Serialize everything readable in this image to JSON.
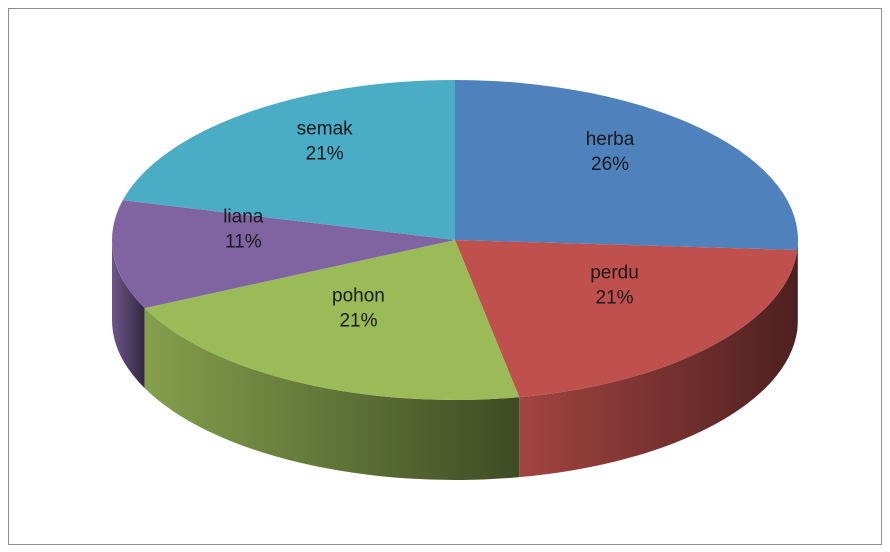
{
  "chart_data": {
    "type": "pie",
    "categories": [
      "herba",
      "perdu",
      "pohon",
      "liana",
      "semak"
    ],
    "values": [
      26,
      21,
      21,
      11,
      21
    ],
    "value_labels": [
      "26%",
      "21%",
      "21%",
      "11%",
      "21%"
    ],
    "colors": [
      "#4f81bd",
      "#c0504d",
      "#9bbb59",
      "#8064a2",
      "#4bacc6"
    ]
  }
}
